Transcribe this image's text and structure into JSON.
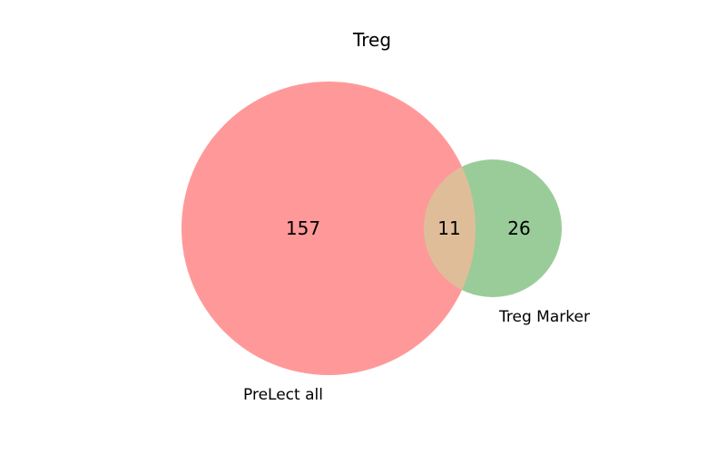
{
  "chart_data": {
    "type": "venn",
    "title": "Treg",
    "sets": [
      {
        "name": "PreLect all",
        "only_count": 157,
        "color": "#ff9999"
      },
      {
        "name": "Treg Marker",
        "only_count": 26,
        "color": "#99cc99"
      }
    ],
    "intersection": {
      "count": 11,
      "color": "#e0bd99"
    },
    "labels": {
      "a_only": "157",
      "intersection": "11",
      "b_only": "26"
    }
  }
}
